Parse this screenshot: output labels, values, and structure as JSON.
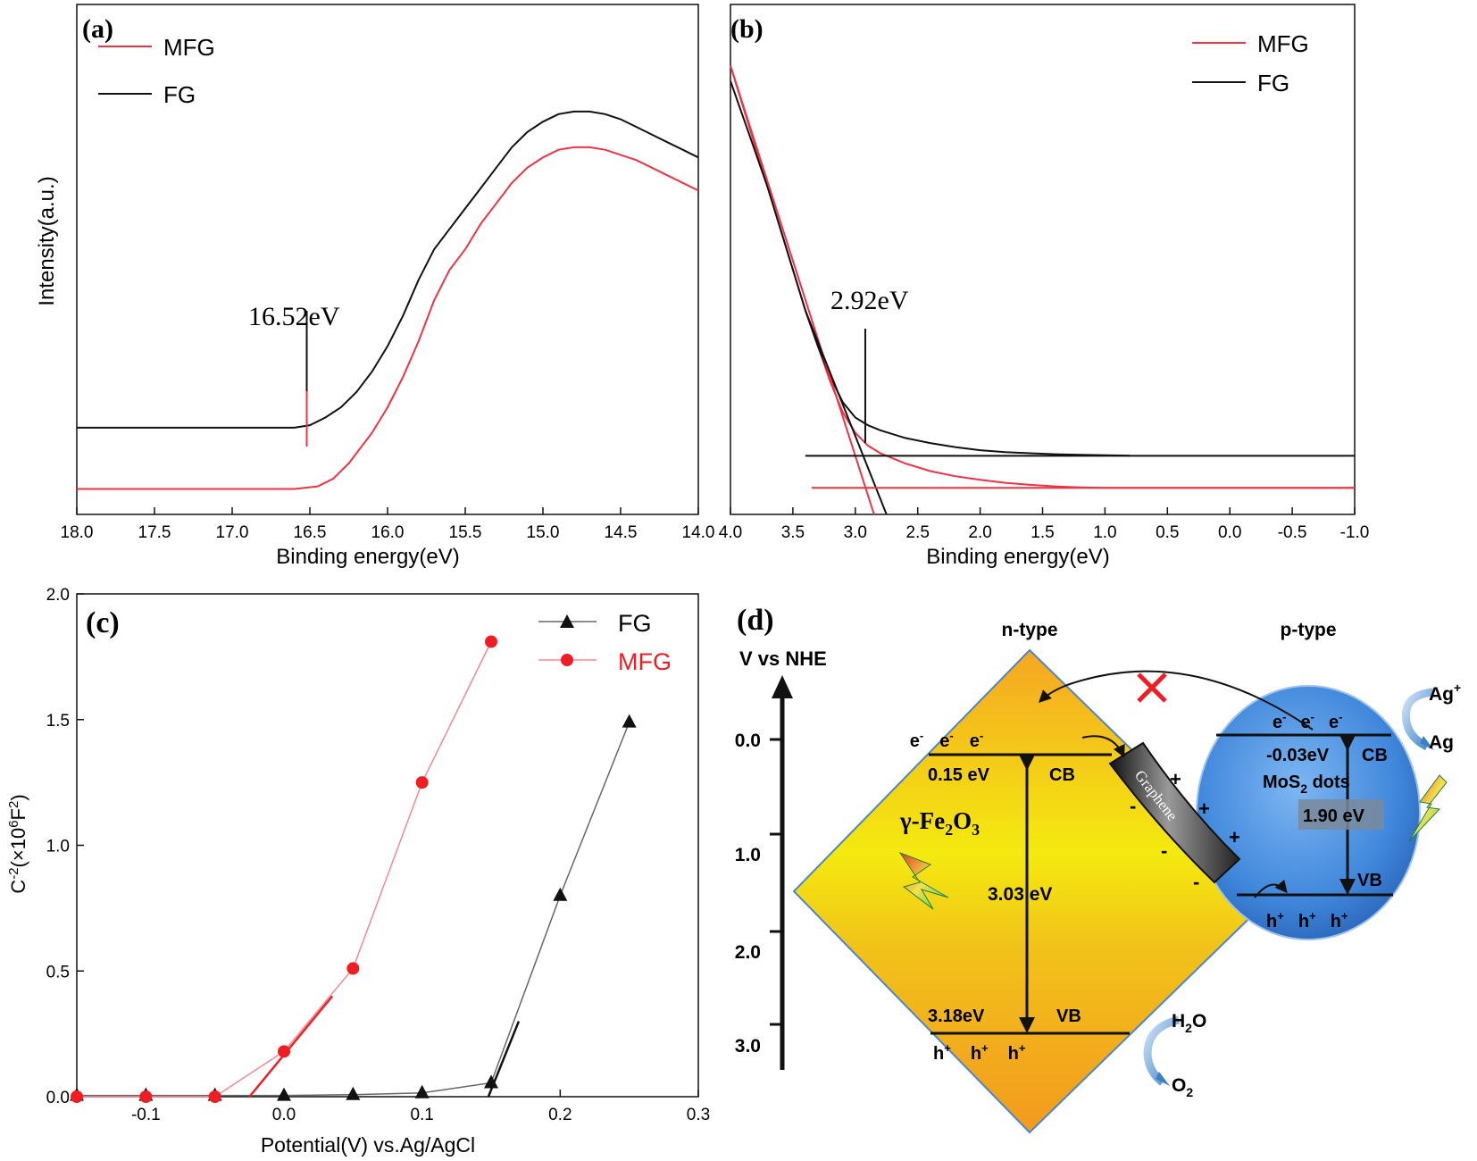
{
  "colors": {
    "mfg": "#ee3344",
    "fg": "#111111",
    "marker_red": "#ee1e24"
  },
  "panels": {
    "a": {
      "label": "(a)",
      "annotation": "16.52eV"
    },
    "b": {
      "label": "(b)",
      "annotation": "2.92eV"
    },
    "c": {
      "label": "(c)"
    },
    "d": {
      "label": "(d)",
      "axis_title": "V vs NHE",
      "ticks": [
        "0.0",
        "1.0",
        "2.0",
        "3.0"
      ],
      "n_type": "n-type",
      "p_type": "p-type",
      "fe2o3": {
        "name_gamma": "γ-Fe",
        "sub2": "2",
        "o": "O",
        "sub3": "3",
        "cb_value": "0.15 eV",
        "cb": "CB",
        "vb_value": "3.18eV",
        "vb": "VB",
        "gap": "3.03 eV"
      },
      "mos2": {
        "name_mo": "MoS",
        "sub2": "2",
        "dots": " dots",
        "cb_value": "-0.03eV",
        "cb": "CB",
        "vb": "VB",
        "gap": "1.90 eV"
      },
      "graphene": "Graphene",
      "electron": "e",
      "electron_sup": "-",
      "hole": "h",
      "hole_sup": "+",
      "plus": "+",
      "minus": "-",
      "ag_plus": "Ag",
      "ag_plus_sup": "+",
      "ag": "Ag",
      "h2o_h": "H",
      "h2o_sub": "2",
      "h2o_o": "O",
      "o2_o": "O",
      "o2_sub": "2"
    }
  },
  "chart_data": [
    {
      "id": "a",
      "type": "line",
      "xlabel": "Binding energy(eV)",
      "ylabel": "Intensity(a.u.)",
      "xlim": [
        18.0,
        14.0
      ],
      "x_reversed": true,
      "x_ticks": [
        "18.0",
        "17.5",
        "17.0",
        "16.5",
        "16.0",
        "15.5",
        "15.0",
        "14.5",
        "14.0"
      ],
      "y_ticks": [],
      "legend": "top-left",
      "series": [
        {
          "name": "MFG",
          "x": [
            18.0,
            17.0,
            16.6,
            16.45,
            16.35,
            16.25,
            16.1,
            16.0,
            15.9,
            15.8,
            15.7,
            15.6,
            15.5,
            15.4,
            15.3,
            15.2,
            15.1,
            15.0,
            14.9,
            14.8,
            14.7,
            14.6,
            14.5,
            14.4,
            14.3,
            14.2,
            14.1,
            14.0
          ],
          "y": [
            0.05,
            0.05,
            0.05,
            0.055,
            0.07,
            0.1,
            0.16,
            0.21,
            0.27,
            0.34,
            0.42,
            0.48,
            0.52,
            0.57,
            0.61,
            0.65,
            0.68,
            0.7,
            0.715,
            0.72,
            0.72,
            0.715,
            0.705,
            0.695,
            0.68,
            0.665,
            0.65,
            0.635
          ]
        },
        {
          "name": "FG",
          "x": [
            18.0,
            17.0,
            16.6,
            16.5,
            16.4,
            16.3,
            16.2,
            16.1,
            16.0,
            15.9,
            15.8,
            15.7,
            15.6,
            15.5,
            15.4,
            15.3,
            15.2,
            15.1,
            15.0,
            14.9,
            14.8,
            14.7,
            14.6,
            14.5,
            14.4,
            14.3,
            14.2,
            14.1,
            14.0
          ],
          "y": [
            0.17,
            0.17,
            0.17,
            0.175,
            0.19,
            0.21,
            0.24,
            0.28,
            0.33,
            0.39,
            0.46,
            0.52,
            0.56,
            0.6,
            0.64,
            0.68,
            0.72,
            0.75,
            0.77,
            0.785,
            0.79,
            0.79,
            0.785,
            0.775,
            0.76,
            0.745,
            0.73,
            0.715,
            0.7
          ]
        }
      ],
      "markers": [
        {
          "x": 16.52,
          "series": "MFG"
        }
      ]
    },
    {
      "id": "b",
      "type": "line",
      "xlabel": "Binding energy(eV)",
      "ylabel": "",
      "xlim": [
        4.0,
        -1.0
      ],
      "x_reversed": true,
      "x_ticks": [
        "4.0",
        "3.5",
        "3.0",
        "2.5",
        "2.0",
        "1.5",
        "1.0",
        "0.5",
        "0.0",
        "-0.5",
        "-1.0"
      ],
      "legend": "top-right",
      "series": [
        {
          "name": "MFG",
          "x": [
            4.0,
            3.9,
            3.8,
            3.7,
            3.6,
            3.5,
            3.4,
            3.3,
            3.2,
            3.1,
            3.0,
            2.9,
            2.8,
            2.6,
            2.4,
            2.2,
            2.0,
            1.8,
            1.6,
            1.4,
            1.2,
            1.0,
            0.5,
            0.0,
            -0.5,
            -1.0
          ],
          "y": [
            0.88,
            0.8,
            0.72,
            0.64,
            0.56,
            0.48,
            0.4,
            0.33,
            0.26,
            0.2,
            0.16,
            0.135,
            0.12,
            0.1,
            0.085,
            0.075,
            0.068,
            0.062,
            0.058,
            0.055,
            0.053,
            0.052,
            0.052,
            0.052,
            0.052,
            0.052
          ]
        },
        {
          "name": "FG",
          "x": [
            4.0,
            3.9,
            3.8,
            3.7,
            3.6,
            3.5,
            3.4,
            3.3,
            3.2,
            3.1,
            3.0,
            2.9,
            2.8,
            2.6,
            2.4,
            2.2,
            2.0,
            1.8,
            1.6,
            1.4,
            1.2,
            1.0,
            0.8
          ],
          "y": [
            0.85,
            0.78,
            0.71,
            0.64,
            0.56,
            0.48,
            0.4,
            0.33,
            0.27,
            0.22,
            0.19,
            0.175,
            0.165,
            0.15,
            0.14,
            0.132,
            0.126,
            0.122,
            0.12,
            0.118,
            0.117,
            0.116,
            0.115
          ]
        }
      ],
      "tangents": [
        {
          "series": "MFG",
          "x": [
            4.0,
            2.85
          ],
          "y": [
            0.88,
            0.0
          ]
        },
        {
          "series": "FG",
          "x": [
            3.4,
            2.75
          ],
          "y": [
            0.4,
            0.0
          ]
        }
      ],
      "baselines": [
        {
          "series": "MFG",
          "x": [
            3.35,
            -1.0
          ],
          "y": 0.052
        },
        {
          "series": "FG",
          "x": [
            3.4,
            -1.0
          ],
          "y": 0.115
        }
      ],
      "markers": [
        {
          "x": 2.92,
          "series": "MFG"
        }
      ]
    },
    {
      "id": "c",
      "type": "line",
      "xlabel": "Potential(V) vs.Ag/AgCl",
      "ylabel": "C-2(×106F2)",
      "ylabel_parts": [
        "C",
        "-2",
        "(×10",
        "6",
        "F",
        "2",
        ")"
      ],
      "xlim": [
        -0.15,
        0.3
      ],
      "ylim": [
        0.0,
        2.0
      ],
      "x_ticks": [
        "-0.1",
        "0.0",
        "0.1",
        "0.2",
        "0.3"
      ],
      "y_ticks": [
        "0.0",
        "0.5",
        "1.0",
        "1.5",
        "2.0"
      ],
      "legend": "top-right",
      "series": [
        {
          "name": "FG",
          "marker": "triangle",
          "x": [
            -0.15,
            -0.1,
            -0.05,
            0.0,
            0.05,
            0.1,
            0.15,
            0.2,
            0.25
          ],
          "y": [
            0.005,
            0.005,
            0.005,
            0.005,
            0.008,
            0.015,
            0.055,
            0.8,
            1.49
          ]
        },
        {
          "name": "MFG",
          "marker": "circle",
          "x": [
            -0.15,
            -0.1,
            -0.05,
            0.0,
            0.05,
            0.1,
            0.15
          ],
          "y": [
            0.0,
            0.0,
            0.0,
            0.18,
            0.51,
            1.25,
            1.81
          ]
        }
      ],
      "extrapolations": [
        {
          "series": "MFG",
          "x": [
            -0.025,
            0.035
          ],
          "y": [
            0.0,
            0.4
          ]
        },
        {
          "series": "FG",
          "x": [
            0.148,
            0.17
          ],
          "y": [
            0.0,
            0.3
          ]
        }
      ]
    }
  ]
}
